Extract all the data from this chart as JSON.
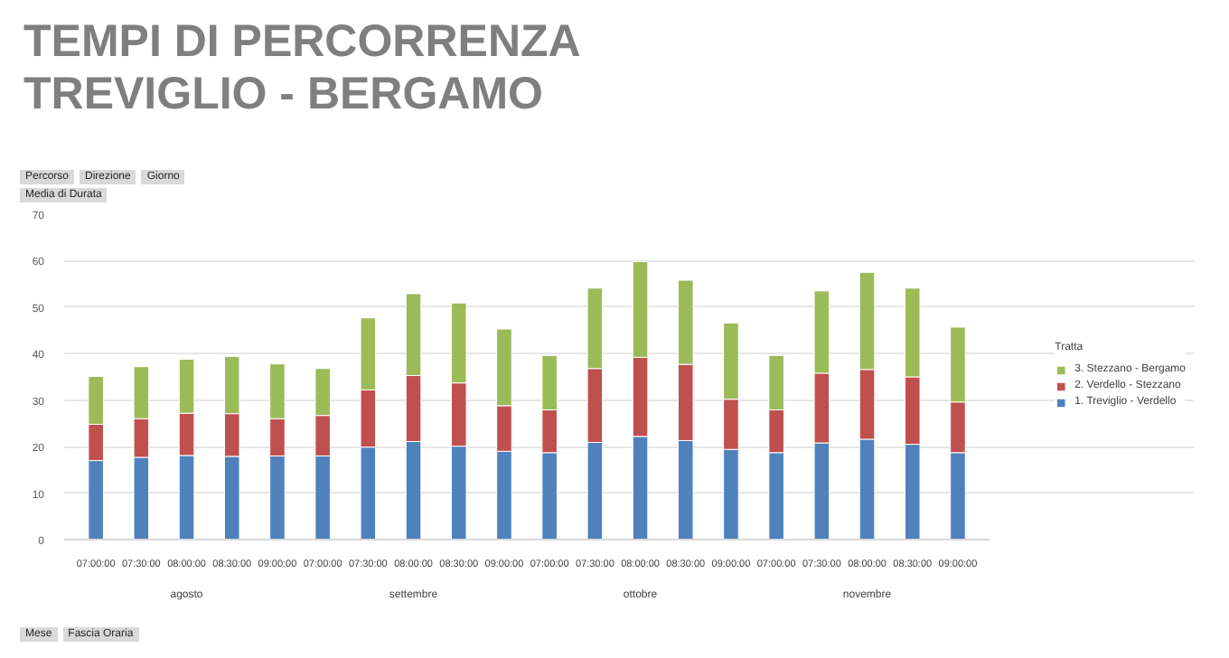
{
  "chart_data": {
    "type": "bar",
    "stacked": true,
    "title": "TEMPI DI PERCORRENZA\nTREVIGLIO - BERGAMO",
    "categories": [
      "07:00:00",
      "07:30:00",
      "08:00:00",
      "08:30:00",
      "09:00:00",
      "07:00:00",
      "07:30:00",
      "08:00:00",
      "08:30:00",
      "09:00:00",
      "07:00:00",
      "07:30:00",
      "08:00:00",
      "08:30:00",
      "09:00:00",
      "07:00:00",
      "07:30:00",
      "08:00:00",
      "08:30:00",
      "09:00:00"
    ],
    "series": [
      {
        "name": "1. Treviglio - Verdello",
        "color": "#4f81bd",
        "values": [
          17.0,
          17.7,
          18.1,
          17.9,
          18.0,
          18.0,
          19.9,
          21.1,
          20.1,
          19.0,
          18.7,
          20.9,
          22.2,
          21.3,
          19.4,
          18.7,
          20.8,
          21.6,
          20.5,
          18.7
        ]
      },
      {
        "name": "2. Verdello - Stezzano",
        "color": "#c0504d",
        "values": [
          7.8,
          8.3,
          9.1,
          9.2,
          8.0,
          8.7,
          12.3,
          14.2,
          13.6,
          9.8,
          9.2,
          15.9,
          17.0,
          16.4,
          10.8,
          9.2,
          15.0,
          15.0,
          14.5,
          10.9
        ]
      },
      {
        "name": "3. Stezzano - Bergamo",
        "color": "#9bbb59",
        "values": [
          10.3,
          11.2,
          11.6,
          12.3,
          11.8,
          10.1,
          15.5,
          17.6,
          17.2,
          16.5,
          11.7,
          17.3,
          20.6,
          18.1,
          16.4,
          11.7,
          17.7,
          20.9,
          19.1,
          16.1
        ]
      }
    ],
    "ylim": [
      0,
      70
    ],
    "yticks": [
      0,
      10,
      20,
      30,
      40,
      50,
      60,
      70
    ],
    "grid": "y",
    "legend": "right",
    "legend_title": "Tratta",
    "annotations": [
      "Percorso",
      "Direzione",
      "Giorno",
      "Media di Durata",
      "agosto",
      "settembre",
      "ottobre",
      "novembre",
      "Mese",
      "Fascia Oraria"
    ]
  }
}
